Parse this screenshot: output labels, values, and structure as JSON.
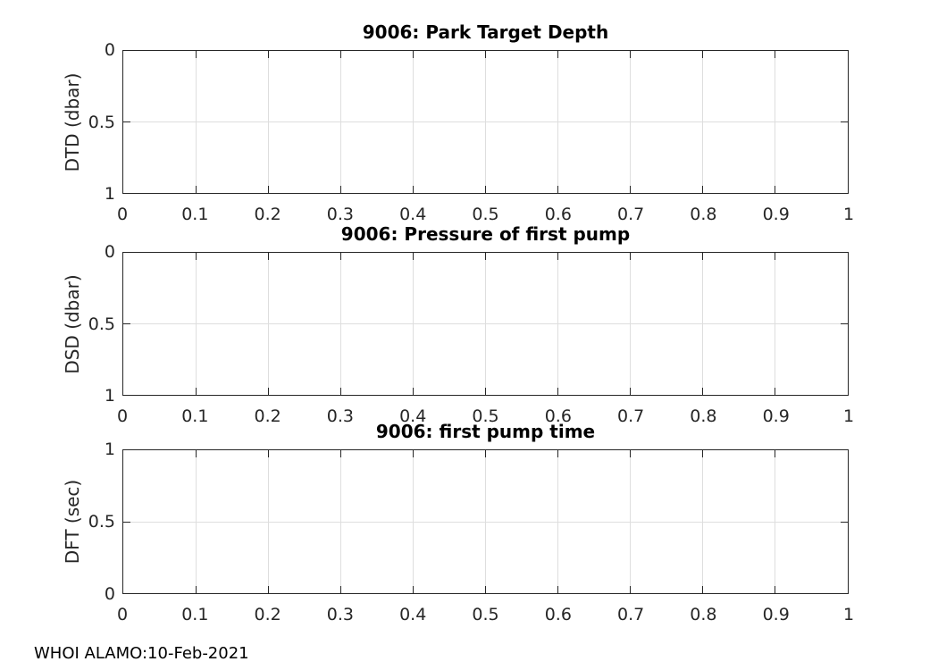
{
  "figure": {
    "background_color": "#ffffff",
    "axis_color": "#262626",
    "grid_color": "#dedede",
    "title_color": "#000000",
    "footer": "WHOI ALAMO:10-Feb-2021"
  },
  "chart_data": [
    {
      "type": "line",
      "title": "9006: Park Target Depth",
      "xlabel": "",
      "ylabel": "DTD (dbar)",
      "xlim": [
        0,
        1
      ],
      "ylim": [
        0,
        1
      ],
      "y_direction": "reverse",
      "grid": true,
      "xtick_labels": [
        "0",
        "0.1",
        "0.2",
        "0.3",
        "0.4",
        "0.5",
        "0.6",
        "0.7",
        "0.8",
        "0.9",
        "1"
      ],
      "ytick_labels_top_to_bottom": [
        "0",
        "0.5",
        "1"
      ],
      "series": []
    },
    {
      "type": "line",
      "title": "9006: Pressure of first pump",
      "xlabel": "",
      "ylabel": "DSD (dbar)",
      "xlim": [
        0,
        1
      ],
      "ylim": [
        0,
        1
      ],
      "y_direction": "reverse",
      "grid": true,
      "xtick_labels": [
        "0",
        "0.1",
        "0.2",
        "0.3",
        "0.4",
        "0.5",
        "0.6",
        "0.7",
        "0.8",
        "0.9",
        "1"
      ],
      "ytick_labels_top_to_bottom": [
        "0",
        "0.5",
        "1"
      ],
      "series": []
    },
    {
      "type": "line",
      "title": "9006: first pump time",
      "xlabel": "",
      "ylabel": "DFT (sec)",
      "xlim": [
        0,
        1
      ],
      "ylim": [
        0,
        1
      ],
      "y_direction": "normal",
      "grid": true,
      "xtick_labels": [
        "0",
        "0.1",
        "0.2",
        "0.3",
        "0.4",
        "0.5",
        "0.6",
        "0.7",
        "0.8",
        "0.9",
        "1"
      ],
      "ytick_labels_top_to_bottom": [
        "1",
        "0.5",
        "0"
      ],
      "series": []
    }
  ]
}
